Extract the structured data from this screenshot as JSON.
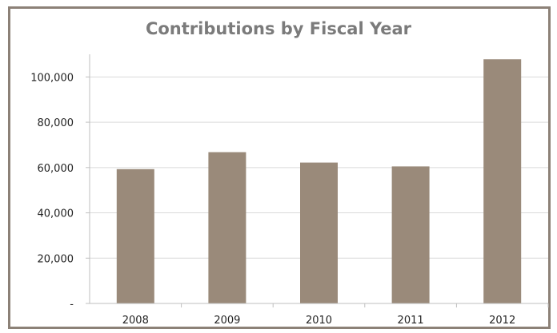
{
  "chart_data": {
    "type": "bar",
    "title": "Contributions by Fiscal Year",
    "xlabel": "",
    "ylabel": "",
    "categories": [
      "2008",
      "2009",
      "2010",
      "2011",
      "2012"
    ],
    "values": [
      59300,
      66800,
      62200,
      60500,
      107800
    ],
    "ylim": [
      0,
      110000
    ],
    "y_ticks": [
      0,
      20000,
      40000,
      60000,
      80000,
      100000
    ],
    "y_tick_labels": [
      "-",
      "20,000",
      "40,000",
      "60,000",
      "80,000",
      "100,000"
    ],
    "grid": "horizontal",
    "legend": "none",
    "colors": {
      "bar": "#9a8a7a",
      "grid": "#d9d9d9",
      "axis": "#bfbfbf",
      "frame": "#8c8177",
      "title": "#7b7b7b"
    }
  }
}
